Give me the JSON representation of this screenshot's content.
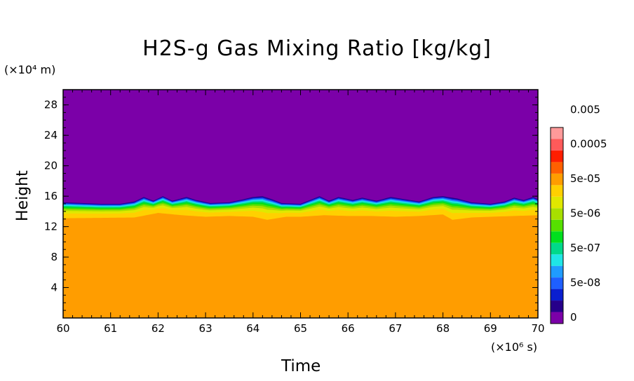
{
  "chart_data": {
    "type": "heatmap",
    "title": "H2S-g Gas Mixing Ratio [kg/kg]",
    "xlabel": "Time",
    "ylabel": "Height",
    "x_unit_label": "(×10⁶ s)",
    "y_unit_label": "(×10⁴ m)",
    "xlim": [
      60,
      70
    ],
    "ylim": [
      0,
      30
    ],
    "x_ticks": [
      "60",
      "61",
      "62",
      "63",
      "64",
      "65",
      "66",
      "67",
      "68",
      "69",
      "70"
    ],
    "y_ticks": [
      "4",
      "8",
      "12",
      "16",
      "20",
      "24",
      "28"
    ],
    "colorbar": {
      "labels": [
        "0",
        "5e-08",
        "5e-07",
        "5e-06",
        "5e-05",
        "0.0005",
        "0.005"
      ],
      "colors": [
        "#7b00a8",
        "#26008a",
        "#0a1fd0",
        "#1e5fff",
        "#1f9cff",
        "#1fe6e6",
        "#00d98a",
        "#00e01e",
        "#56e000",
        "#a8e000",
        "#e0e800",
        "#ffd000",
        "#ff9d00",
        "#ff6000",
        "#ff1e00",
        "#ff5a5a",
        "#ff9a9a"
      ]
    },
    "fields": {
      "base_level": {
        "color": "#ff9d00",
        "x": [
          60,
          61.5,
          62,
          62.5,
          63,
          63.5,
          64,
          64.3,
          64.7,
          65,
          65.5,
          66,
          66.5,
          67,
          67.5,
          68,
          68.2,
          68.6,
          69,
          69.5,
          70
        ],
        "height": [
          13.1,
          13.2,
          13.8,
          13.5,
          13.3,
          13.4,
          13.3,
          12.9,
          13.3,
          13.3,
          13.5,
          13.4,
          13.4,
          13.3,
          13.4,
          13.6,
          12.9,
          13.2,
          13.3,
          13.4,
          13.5
        ]
      },
      "top_level": {
        "color": "#7b00a8",
        "x": [
          60,
          60.8,
          61.2,
          61.5,
          61.7,
          61.9,
          62.1,
          62.3,
          62.6,
          62.8,
          63.1,
          63.5,
          63.8,
          64,
          64.2,
          64.4,
          64.6,
          65,
          65.2,
          65.4,
          65.6,
          65.8,
          66.1,
          66.3,
          66.6,
          66.9,
          67.2,
          67.5,
          67.8,
          68,
          68.3,
          68.6,
          69,
          69.3,
          69.5,
          69.7,
          69.9,
          70
        ],
        "height": [
          15.2,
          15.0,
          15.0,
          15.3,
          15.9,
          15.4,
          16.0,
          15.4,
          15.9,
          15.5,
          15.1,
          15.2,
          15.6,
          15.9,
          16.0,
          15.6,
          15.1,
          15.0,
          15.5,
          16.0,
          15.4,
          15.9,
          15.5,
          15.8,
          15.4,
          15.9,
          15.6,
          15.3,
          15.9,
          16.0,
          15.7,
          15.2,
          15.0,
          15.3,
          15.8,
          15.5,
          15.9,
          15.6
        ]
      }
    }
  }
}
